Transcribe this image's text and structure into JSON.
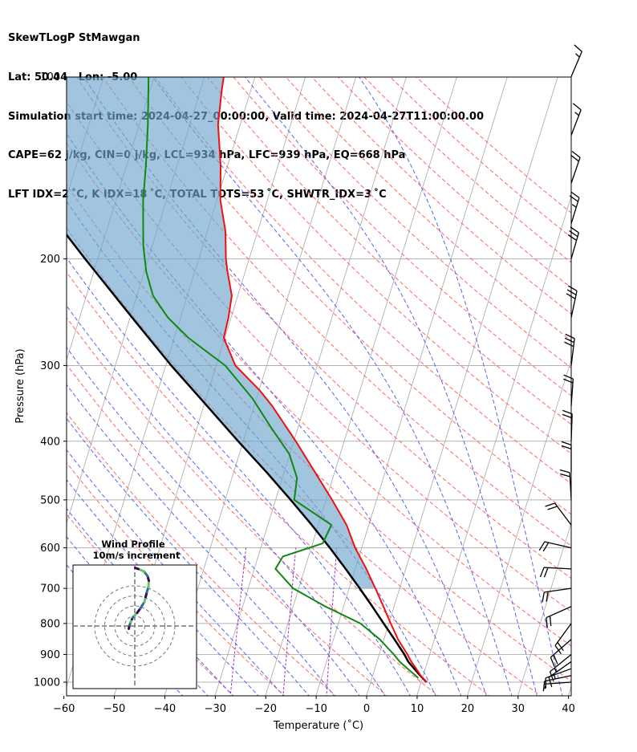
{
  "title_lines": [
    "SkewTLogP StMawgan",
    "Lat: 50.44   Lon: -5.00",
    "Simulation start time: 2024-04-27_00:00:00, Valid time: 2024-04-27T11:00:00.00",
    "CAPE=62 j/kg, CIN=0 j/kg, LCL=934 hPa, LFC=939 hPa, EQ=668 hPa",
    "LFT IDX=2 ˚C, K IDX=18 ˚C, TOTAL TOTS=53 ˚C, SHWTR_IDX=3 ˚C"
  ],
  "colors": {
    "temperature": "#ee1111",
    "dewpoint": "#118811",
    "parcel": "#000000",
    "cape_fill": "#6fa6cc",
    "dry_adiabat": "#ff6666",
    "moist_adiabat": "#5566ee",
    "mixing_ratio": "#9933bb",
    "isotherm": "#b0b0b0"
  },
  "chart_data": {
    "type": "skewt",
    "xlabel": "Temperature (˚C)",
    "ylabel": "Pressure (hPa)",
    "xlim": [
      -60,
      40
    ],
    "ylim": [
      1050,
      100
    ],
    "x_ticks": [
      "−60",
      "−50",
      "−40",
      "−30",
      "−20",
      "−10",
      "0",
      "10",
      "20",
      "30",
      "40"
    ],
    "y_ticks": [
      "1000",
      "900",
      "800",
      "700",
      "600",
      "500",
      "400",
      "300",
      "200",
      "100"
    ],
    "y_tick_values": [
      1000,
      900,
      800,
      700,
      600,
      500,
      400,
      300,
      200,
      100
    ],
    "x_tick_values": [
      -60,
      -50,
      -40,
      -30,
      -20,
      -10,
      0,
      10,
      20,
      30,
      40
    ],
    "grid": true,
    "temperature": {
      "p": [
        1000,
        975,
        950,
        925,
        900,
        850,
        800,
        750,
        700,
        650,
        600,
        550,
        500,
        450,
        400,
        350,
        330,
        300,
        270,
        250,
        230,
        210,
        200,
        180,
        160,
        140,
        120,
        105,
        100
      ],
      "t": [
        11.1,
        9.5,
        8.2,
        6.8,
        5.6,
        2.8,
        0.4,
        -2.1,
        -4.8,
        -7.8,
        -11.3,
        -14.4,
        -18.8,
        -23.9,
        -29.6,
        -36.4,
        -39.8,
        -46.2,
        -50.2,
        -50.5,
        -51.2,
        -53.5,
        -54.6,
        -56.4,
        -59.3,
        -61.4,
        -64.4,
        -65.8,
        -66.2
      ]
    },
    "dewpoint": {
      "p": [
        985,
        975,
        950,
        925,
        900,
        850,
        800,
        750,
        700,
        650,
        620,
        590,
        550,
        500,
        460,
        420,
        380,
        340,
        300,
        270,
        250,
        230,
        210,
        190,
        180,
        160,
        140,
        120,
        100
      ],
      "td": [
        9.2,
        8.5,
        6.5,
        4.5,
        2.9,
        -0.8,
        -5.6,
        -13.6,
        -21.1,
        -25.8,
        -25.1,
        -18.0,
        -17.4,
        -26.3,
        -27.1,
        -30.1,
        -35.3,
        -40.8,
        -48.2,
        -57.2,
        -62.5,
        -66.8,
        -69.6,
        -71.8,
        -72.7,
        -74.6,
        -76.2,
        -78.3,
        -81.1
      ]
    },
    "parcel": {
      "p": [
        1000,
        975,
        950,
        925,
        900,
        850,
        800,
        750,
        700,
        650,
        600,
        550,
        500,
        450,
        400,
        350,
        300,
        250,
        200,
        150,
        100
      ],
      "t": [
        11.1,
        9.4,
        7.8,
        6.2,
        5.0,
        2.1,
        -1.0,
        -4.3,
        -7.9,
        -11.9,
        -16.3,
        -21.3,
        -27.0,
        -33.5,
        -41.0,
        -49.3,
        -58.9,
        -69.6,
        -82.5,
        -98.7,
        -121.7
      ]
    },
    "wind_profile": {
      "title": "Wind Profile",
      "subtitle": "10m/s increment",
      "ring_step_ms": 10,
      "rings": 3,
      "hodograph_u": [
        -1.5,
        -1.3,
        -1.0,
        -0.7,
        -0.5,
        -0.1,
        0.6,
        1.4,
        2.4,
        2.7,
        3.0,
        3.4,
        3.5,
        3.2,
        2.3,
        0.9,
        0.1
      ],
      "hodograph_v": [
        -0.7,
        0.2,
        1.0,
        1.7,
        2.1,
        2.6,
        3.3,
        4.4,
        6.0,
        7.2,
        8.4,
        9.7,
        11.3,
        12.4,
        13.6,
        14.2,
        14.5
      ]
    },
    "wind_barbs": {
      "p": [
        1000,
        975,
        950,
        925,
        900,
        850,
        800,
        750,
        700,
        650,
        600,
        550,
        500,
        450,
        400,
        350,
        300,
        250,
        200,
        175,
        150,
        125,
        100
      ],
      "speed_kt": [
        6,
        9,
        10,
        14,
        16,
        20,
        20,
        21,
        21,
        20,
        19,
        18,
        20,
        21,
        21,
        22,
        28,
        31,
        28,
        26,
        20,
        16,
        14
      ],
      "dir_deg": [
        266,
        258,
        250,
        235,
        231,
        229,
        216,
        246,
        262,
        273,
        283,
        323,
        357,
        0,
        2,
        4,
        7,
        12,
        16,
        17,
        19,
        21,
        23
      ]
    }
  }
}
